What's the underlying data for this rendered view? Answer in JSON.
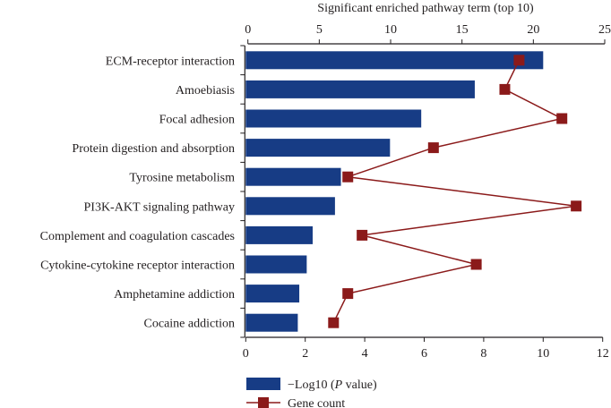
{
  "chart_data": {
    "type": "bar",
    "title": "Significant enriched pathway term (top 10)",
    "categories": [
      "ECM-receptor interaction",
      "Amoebiasis",
      "Focal adhesion",
      "Protein digestion and absorption",
      "Tyrosine metabolism",
      "PI3K-AKT signaling pathway",
      "Complement and coagulation cascades",
      "Cytokine-cytokine receptor interaction",
      "Amphetamine addiction",
      "Cocaine addiction"
    ],
    "series": [
      {
        "name": "−Log10 (P value)",
        "type": "bar",
        "axis": "bottom",
        "color": "#173c85",
        "values": [
          10.0,
          7.7,
          5.9,
          4.85,
          3.2,
          3.0,
          2.25,
          2.05,
          1.8,
          1.75
        ]
      },
      {
        "name": "Gene count",
        "type": "line",
        "axis": "top",
        "color": "#8b1a1a",
        "values": [
          19,
          18,
          22,
          13,
          7,
          23,
          8,
          16,
          7,
          6
        ]
      }
    ],
    "bottom_axis": {
      "range": [
        0,
        12
      ],
      "ticks": [
        "0",
        "2",
        "4",
        "6",
        "8",
        "10",
        "12"
      ]
    },
    "top_axis": {
      "range": [
        0,
        25
      ],
      "ticks": [
        "0",
        "5",
        "10",
        "15",
        "20",
        "25"
      ]
    },
    "legend": {
      "placement": "bottom",
      "entries": [
        "−Log10 (",
        "P",
        " value)",
        "Gene count"
      ]
    }
  }
}
